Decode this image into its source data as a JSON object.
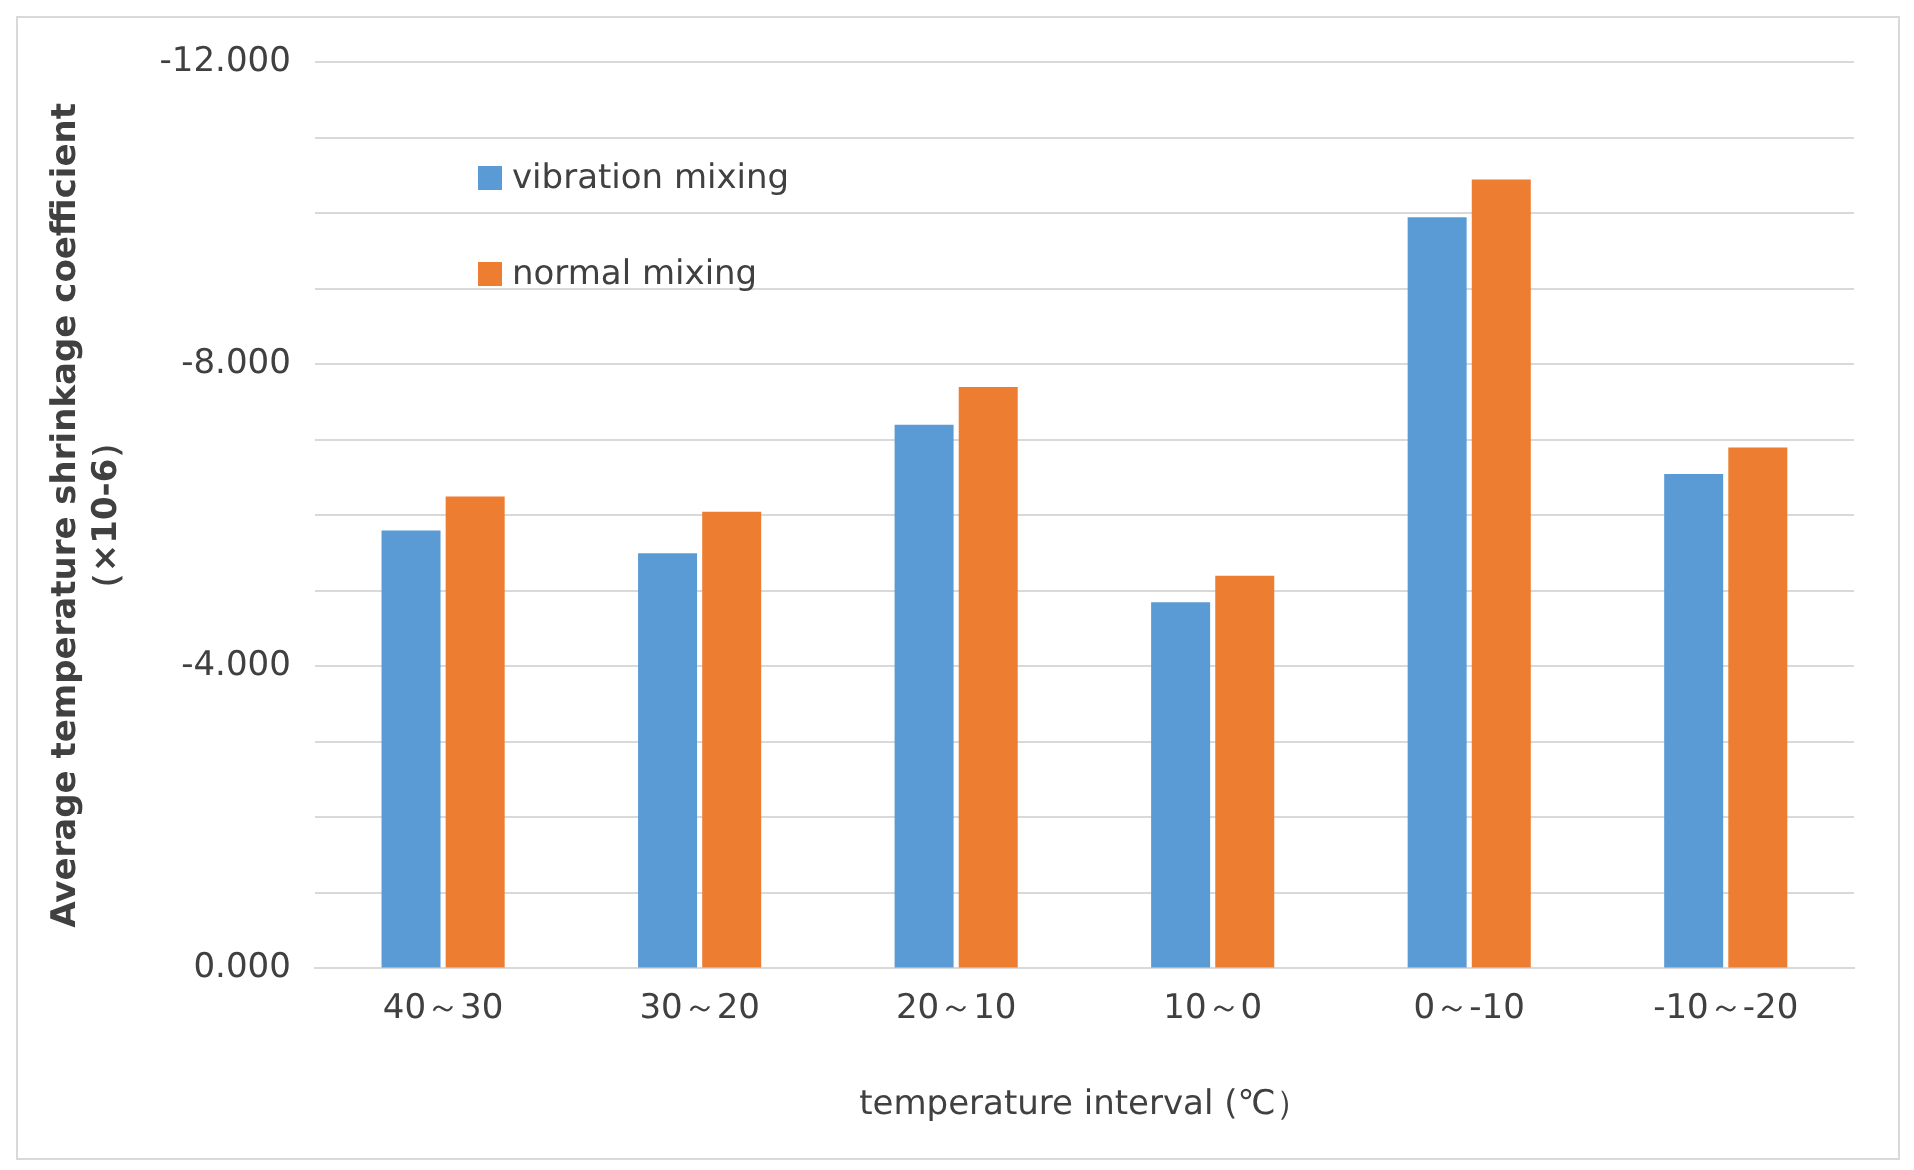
{
  "chart_data": {
    "type": "bar",
    "xlabel": "temperature interval (℃）",
    "ylabel": "Average temperature shrinkage coefficient\n（×10-6）",
    "categories": [
      "40～30",
      "30～20",
      "20～10",
      "10～0",
      "0～-10",
      "-10～-20"
    ],
    "series": [
      {
        "name": "vibration mixing",
        "color": "#5b9bd5",
        "values": [
          -5.8,
          -5.5,
          -7.2,
          -4.85,
          -9.95,
          -6.55
        ]
      },
      {
        "name": "normal mixing",
        "color": "#ed7d31",
        "values": [
          -6.25,
          -6.05,
          -7.7,
          -5.2,
          -10.45,
          -6.9
        ]
      }
    ],
    "ylim": [
      0,
      -12
    ],
    "yticks": [
      {
        "value": 0,
        "label": "0.000"
      },
      {
        "value": -1,
        "label": null
      },
      {
        "value": -2,
        "label": null
      },
      {
        "value": -3,
        "label": null
      },
      {
        "value": -4,
        "label": "-4.000"
      },
      {
        "value": -5,
        "label": null
      },
      {
        "value": -6,
        "label": null
      },
      {
        "value": -7,
        "label": null
      },
      {
        "value": -8,
        "label": "-8.000"
      },
      {
        "value": -9,
        "label": null
      },
      {
        "value": -10,
        "label": null
      },
      {
        "value": -11,
        "label": null
      },
      {
        "value": -12,
        "label": "-12.000"
      }
    ],
    "grid": "y",
    "legend": "top left"
  }
}
